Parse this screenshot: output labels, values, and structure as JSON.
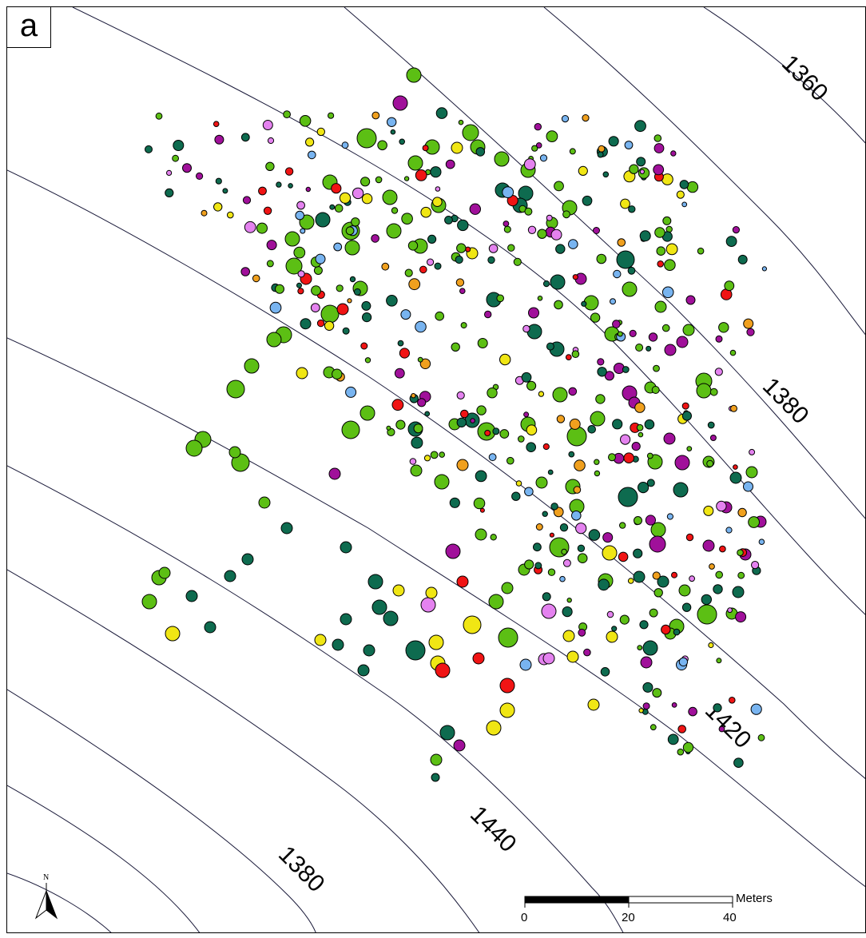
{
  "panel_label": "a",
  "contour_labels": [
    "1360",
    "1380",
    "1420",
    "1440",
    "1380"
  ],
  "scale_bar": {
    "ticks": [
      "0",
      "20",
      "40"
    ],
    "unit": "Meters"
  },
  "north_arrow": {
    "label": "N",
    "icon": "north-arrow-icon"
  },
  "point_colors": {
    "light-green": "#5cbf14",
    "dark-green": "#0e6b4f",
    "yellow": "#f0e614",
    "orange": "#f0a01e",
    "red": "#f01414",
    "magenta": "#a0109a",
    "light-blue": "#78b4f0",
    "lilac": "#e482ef"
  }
}
